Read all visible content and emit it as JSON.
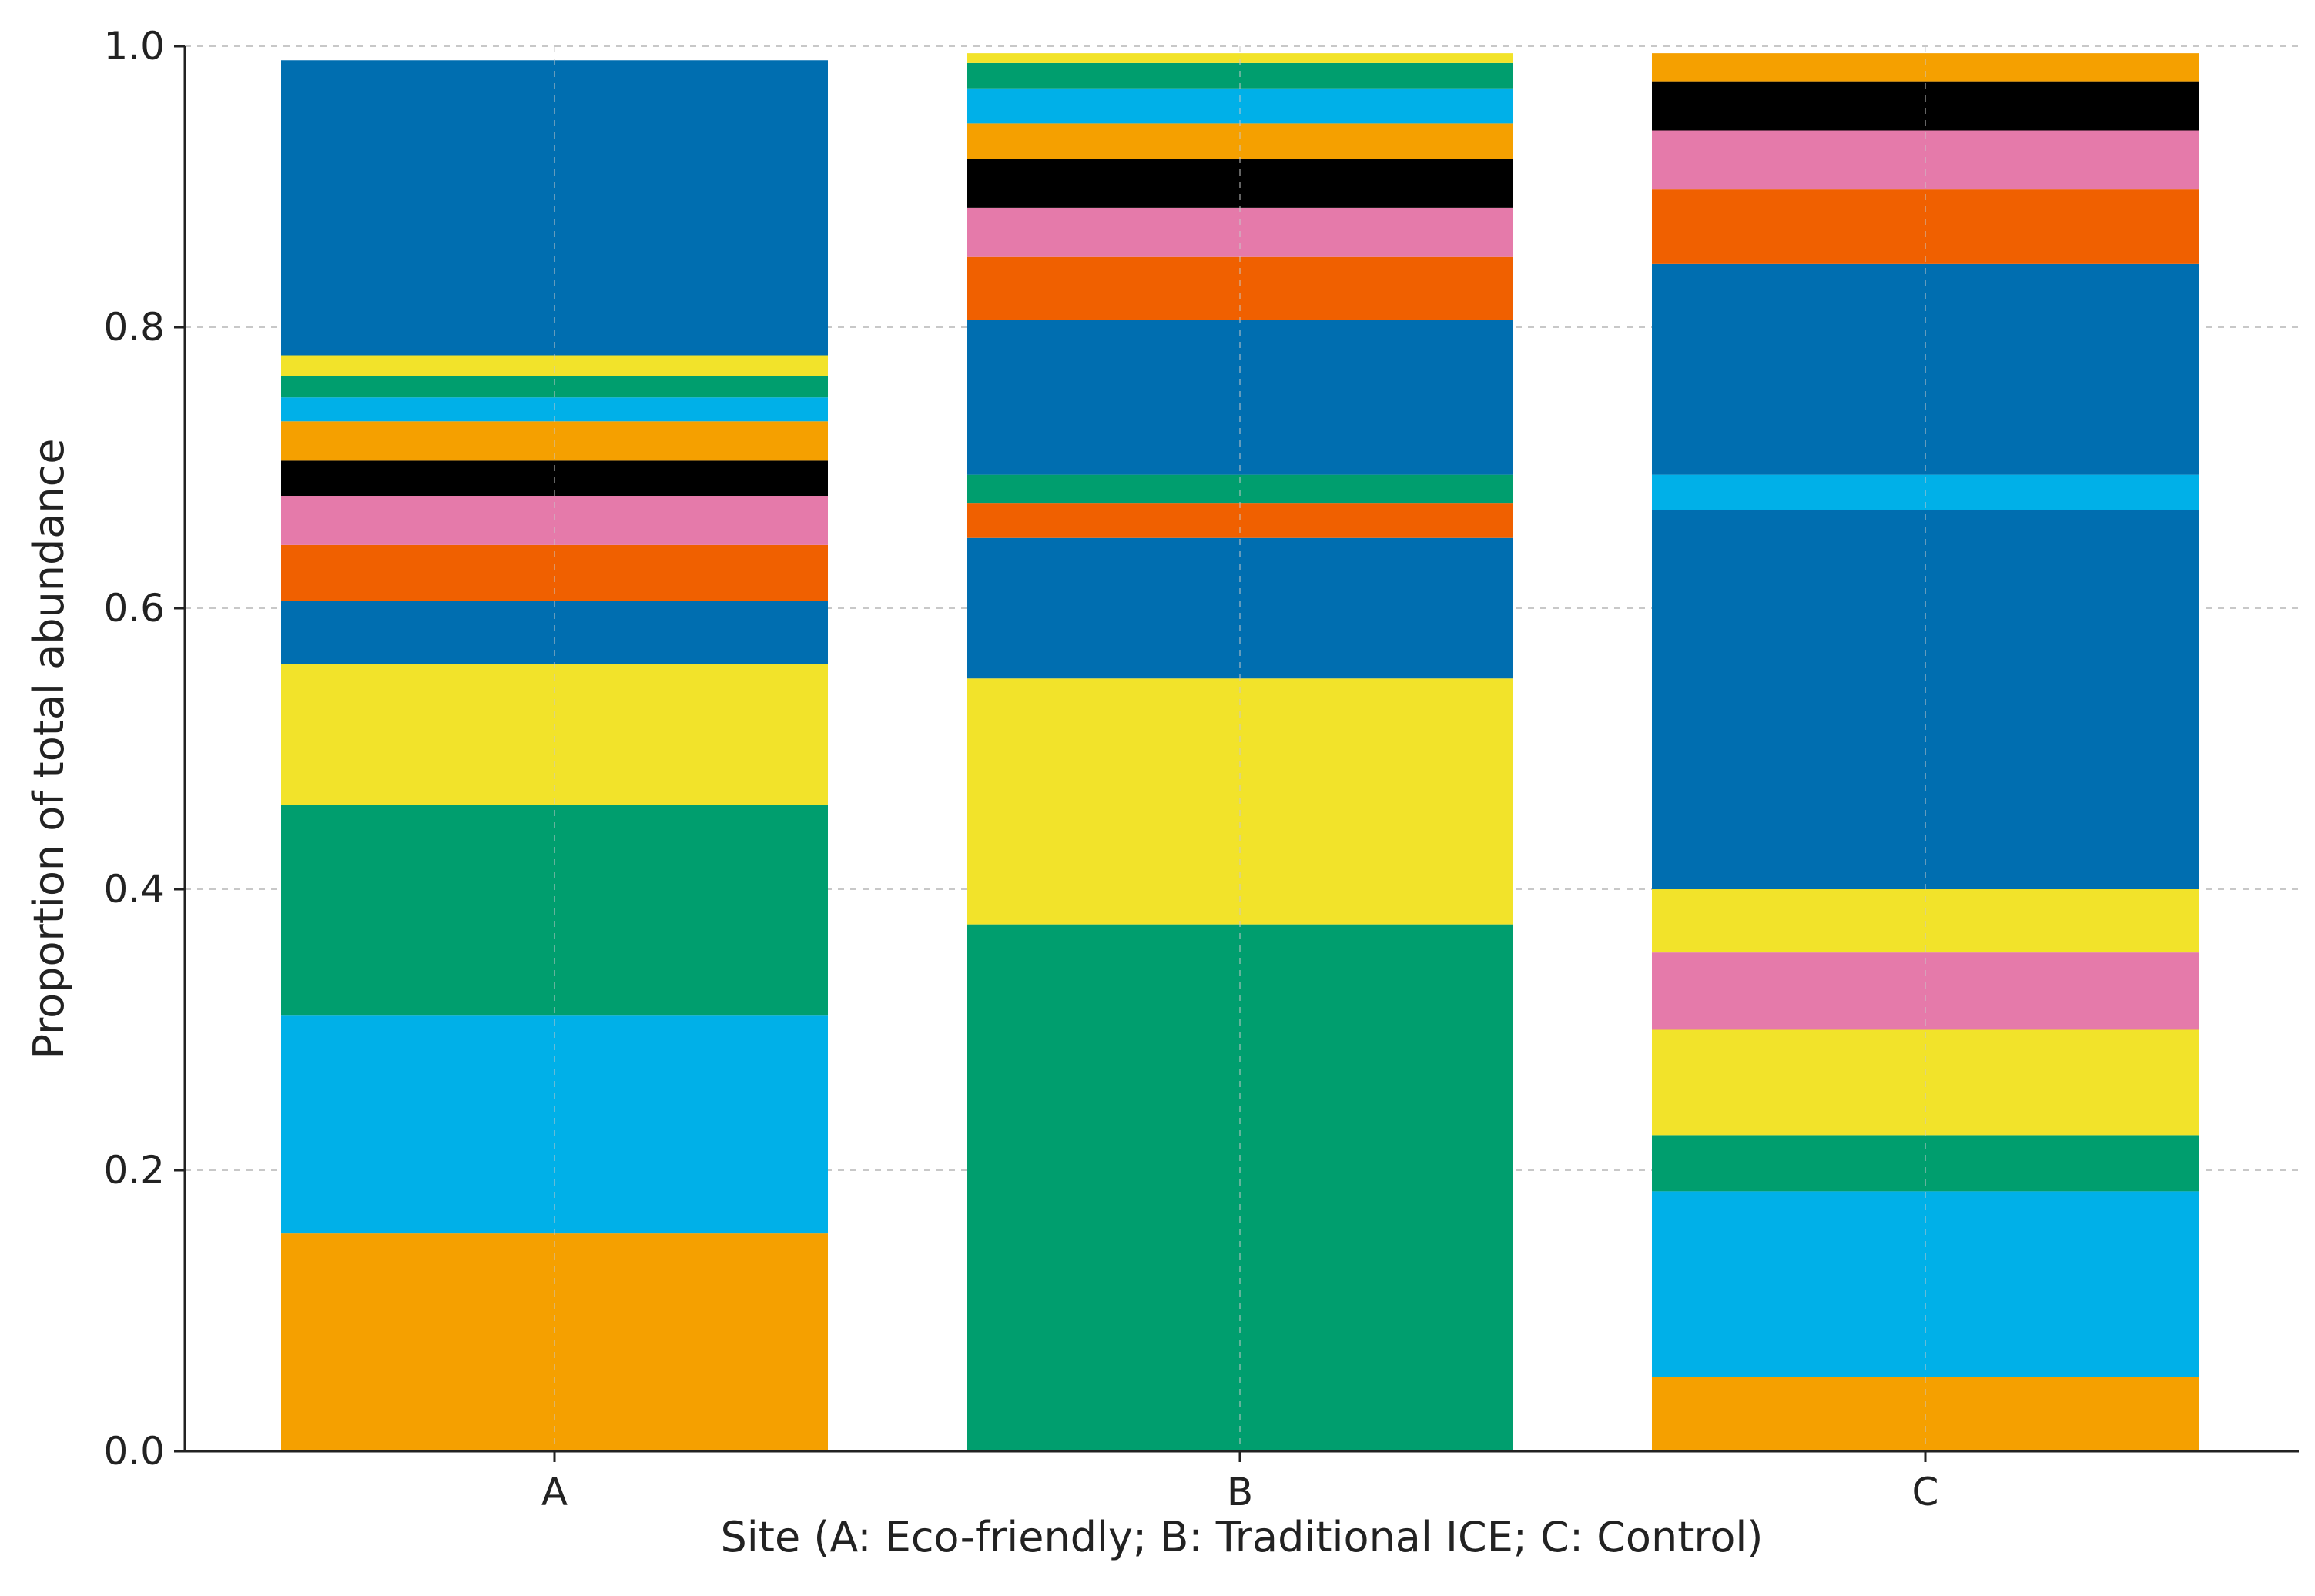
{
  "chart_data": {
    "type": "bar",
    "stacked": true,
    "title": "",
    "xlabel": "Site (A: Eco-friendly; B: Traditional ICE; C: Control)",
    "ylabel": "Proportion of total abundance",
    "ylim": [
      0,
      1.0
    ],
    "yticks": [
      "0.0",
      "0.2",
      "0.4",
      "0.6",
      "0.8",
      "1.0"
    ],
    "grid": true,
    "categories": [
      "A",
      "B",
      "C"
    ],
    "stacks": [
      {
        "category": "A",
        "segments": [
          {
            "value": 0.155,
            "color": "#F5A000"
          },
          {
            "value": 0.155,
            "color": "#00B0E8"
          },
          {
            "value": 0.15,
            "color": "#009E6E"
          },
          {
            "value": 0.1,
            "color": "#F2E32A"
          },
          {
            "value": 0.045,
            "color": "#006EB0"
          },
          {
            "value": 0.04,
            "color": "#F06000"
          },
          {
            "value": 0.035,
            "color": "#E57AAA"
          },
          {
            "value": 0.025,
            "color": "#000000"
          },
          {
            "value": 0.028,
            "color": "#F5A000"
          },
          {
            "value": 0.017,
            "color": "#00B0E8"
          },
          {
            "value": 0.015,
            "color": "#009E6E"
          },
          {
            "value": 0.015,
            "color": "#F2E32A"
          },
          {
            "value": 0.21,
            "color": "#006EB0"
          }
        ]
      },
      {
        "category": "B",
        "segments": [
          {
            "value": 0.375,
            "color": "#009E6E"
          },
          {
            "value": 0.175,
            "color": "#F2E32A"
          },
          {
            "value": 0.1,
            "color": "#006EB0"
          },
          {
            "value": 0.025,
            "color": "#F06000"
          },
          {
            "value": 0.02,
            "color": "#009E6E"
          },
          {
            "value": 0.11,
            "color": "#006EB0"
          },
          {
            "value": 0.045,
            "color": "#F06000"
          },
          {
            "value": 0.035,
            "color": "#E57AAA"
          },
          {
            "value": 0.035,
            "color": "#000000"
          },
          {
            "value": 0.025,
            "color": "#F5A000"
          },
          {
            "value": 0.025,
            "color": "#00B0E8"
          },
          {
            "value": 0.018,
            "color": "#009E6E"
          },
          {
            "value": 0.007,
            "color": "#F2E32A"
          }
        ]
      },
      {
        "category": "C",
        "segments": [
          {
            "value": 0.053,
            "color": "#F5A000"
          },
          {
            "value": 0.132,
            "color": "#00B0E8"
          },
          {
            "value": 0.04,
            "color": "#009E6E"
          },
          {
            "value": 0.075,
            "color": "#F2E32A"
          },
          {
            "value": 0.055,
            "color": "#E57AAA"
          },
          {
            "value": 0.045,
            "color": "#F2E32A"
          },
          {
            "value": 0.27,
            "color": "#006EB0"
          },
          {
            "value": 0.025,
            "color": "#00B0E8"
          },
          {
            "value": 0.15,
            "color": "#006EB0"
          },
          {
            "value": 0.053,
            "color": "#F06000"
          },
          {
            "value": 0.042,
            "color": "#E57AAA"
          },
          {
            "value": 0.035,
            "color": "#000000"
          },
          {
            "value": 0.02,
            "color": "#F5A000"
          }
        ]
      }
    ]
  }
}
